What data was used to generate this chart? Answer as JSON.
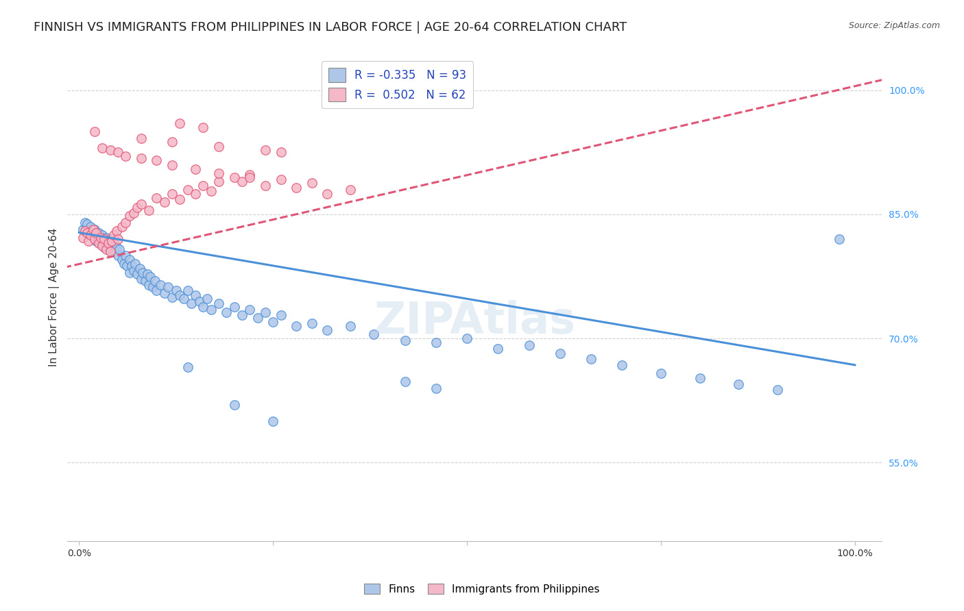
{
  "title": "FINNISH VS IMMIGRANTS FROM PHILIPPINES IN LABOR FORCE | AGE 20-64 CORRELATION CHART",
  "source": "Source: ZipAtlas.com",
  "ylabel": "In Labor Force | Age 20-64",
  "xlim": [
    -0.015,
    1.035
  ],
  "ylim": [
    0.455,
    1.045
  ],
  "yticks": [
    0.55,
    0.7,
    0.85,
    1.0
  ],
  "ytick_labels": [
    "55.0%",
    "70.0%",
    "85.0%",
    "100.0%"
  ],
  "xtick_labels": [
    "0.0%",
    "",
    "",
    "",
    "100.0%"
  ],
  "background_color": "#ffffff",
  "grid_color": "#d0d0d0",
  "finns_color": "#aec6e8",
  "philippines_color": "#f5b8c8",
  "finns_line_color": "#4a90d9",
  "philippines_line_color": "#e05575",
  "legend_r_finns": "-0.335",
  "legend_n_finns": "93",
  "legend_r_philippines": "0.502",
  "legend_n_philippines": "62",
  "finns_trend": [
    0.828,
    -0.16
  ],
  "phil_trend": [
    0.79,
    0.215
  ],
  "finns_x": [
    0.005,
    0.008,
    0.01,
    0.012,
    0.015,
    0.015,
    0.018,
    0.02,
    0.02,
    0.022,
    0.025,
    0.025,
    0.028,
    0.03,
    0.03,
    0.032,
    0.035,
    0.035,
    0.038,
    0.04,
    0.04,
    0.042,
    0.045,
    0.045,
    0.048,
    0.05,
    0.052,
    0.055,
    0.058,
    0.06,
    0.062,
    0.065,
    0.065,
    0.068,
    0.07,
    0.072,
    0.075,
    0.078,
    0.08,
    0.082,
    0.085,
    0.088,
    0.09,
    0.092,
    0.095,
    0.098,
    0.1,
    0.105,
    0.11,
    0.115,
    0.12,
    0.125,
    0.13,
    0.135,
    0.14,
    0.145,
    0.15,
    0.155,
    0.16,
    0.165,
    0.17,
    0.18,
    0.19,
    0.2,
    0.21,
    0.22,
    0.23,
    0.24,
    0.25,
    0.26,
    0.28,
    0.3,
    0.32,
    0.35,
    0.38,
    0.42,
    0.46,
    0.5,
    0.54,
    0.58,
    0.62,
    0.66,
    0.7,
    0.75,
    0.8,
    0.85,
    0.9,
    0.42,
    0.46,
    0.98,
    0.14,
    0.2,
    0.25
  ],
  "finns_y": [
    0.832,
    0.84,
    0.838,
    0.828,
    0.835,
    0.825,
    0.83,
    0.822,
    0.832,
    0.818,
    0.828,
    0.82,
    0.815,
    0.825,
    0.815,
    0.81,
    0.822,
    0.812,
    0.818,
    0.81,
    0.82,
    0.808,
    0.815,
    0.805,
    0.81,
    0.8,
    0.808,
    0.795,
    0.79,
    0.8,
    0.788,
    0.795,
    0.78,
    0.788,
    0.782,
    0.79,
    0.778,
    0.785,
    0.772,
    0.78,
    0.77,
    0.778,
    0.765,
    0.775,
    0.762,
    0.77,
    0.758,
    0.765,
    0.755,
    0.762,
    0.75,
    0.758,
    0.752,
    0.748,
    0.758,
    0.742,
    0.752,
    0.745,
    0.738,
    0.748,
    0.735,
    0.742,
    0.732,
    0.738,
    0.728,
    0.735,
    0.725,
    0.732,
    0.72,
    0.728,
    0.715,
    0.718,
    0.71,
    0.715,
    0.705,
    0.698,
    0.695,
    0.7,
    0.688,
    0.692,
    0.682,
    0.675,
    0.668,
    0.658,
    0.652,
    0.645,
    0.638,
    0.648,
    0.64,
    0.82,
    0.665,
    0.62,
    0.6
  ],
  "phil_x": [
    0.005,
    0.008,
    0.01,
    0.012,
    0.015,
    0.018,
    0.02,
    0.022,
    0.025,
    0.028,
    0.03,
    0.032,
    0.035,
    0.038,
    0.04,
    0.042,
    0.045,
    0.048,
    0.05,
    0.055,
    0.06,
    0.065,
    0.07,
    0.075,
    0.08,
    0.09,
    0.1,
    0.11,
    0.12,
    0.13,
    0.14,
    0.15,
    0.16,
    0.17,
    0.18,
    0.2,
    0.21,
    0.22,
    0.24,
    0.26,
    0.28,
    0.3,
    0.32,
    0.35,
    0.02,
    0.03,
    0.04,
    0.05,
    0.06,
    0.08,
    0.1,
    0.12,
    0.15,
    0.18,
    0.22,
    0.13,
    0.16,
    0.08,
    0.12,
    0.18,
    0.24,
    0.26
  ],
  "phil_y": [
    0.822,
    0.83,
    0.828,
    0.818,
    0.825,
    0.832,
    0.82,
    0.828,
    0.815,
    0.822,
    0.812,
    0.82,
    0.808,
    0.815,
    0.805,
    0.818,
    0.825,
    0.83,
    0.82,
    0.835,
    0.84,
    0.848,
    0.852,
    0.858,
    0.862,
    0.855,
    0.87,
    0.865,
    0.875,
    0.868,
    0.88,
    0.875,
    0.885,
    0.878,
    0.89,
    0.895,
    0.89,
    0.898,
    0.885,
    0.892,
    0.882,
    0.888,
    0.875,
    0.88,
    0.95,
    0.93,
    0.928,
    0.925,
    0.92,
    0.918,
    0.915,
    0.91,
    0.905,
    0.9,
    0.895,
    0.96,
    0.955,
    0.942,
    0.938,
    0.932,
    0.928,
    0.925
  ],
  "watermark": "ZIPAtlas",
  "title_fontsize": 13,
  "axis_label_fontsize": 11,
  "tick_fontsize": 10,
  "legend_fontsize": 12
}
